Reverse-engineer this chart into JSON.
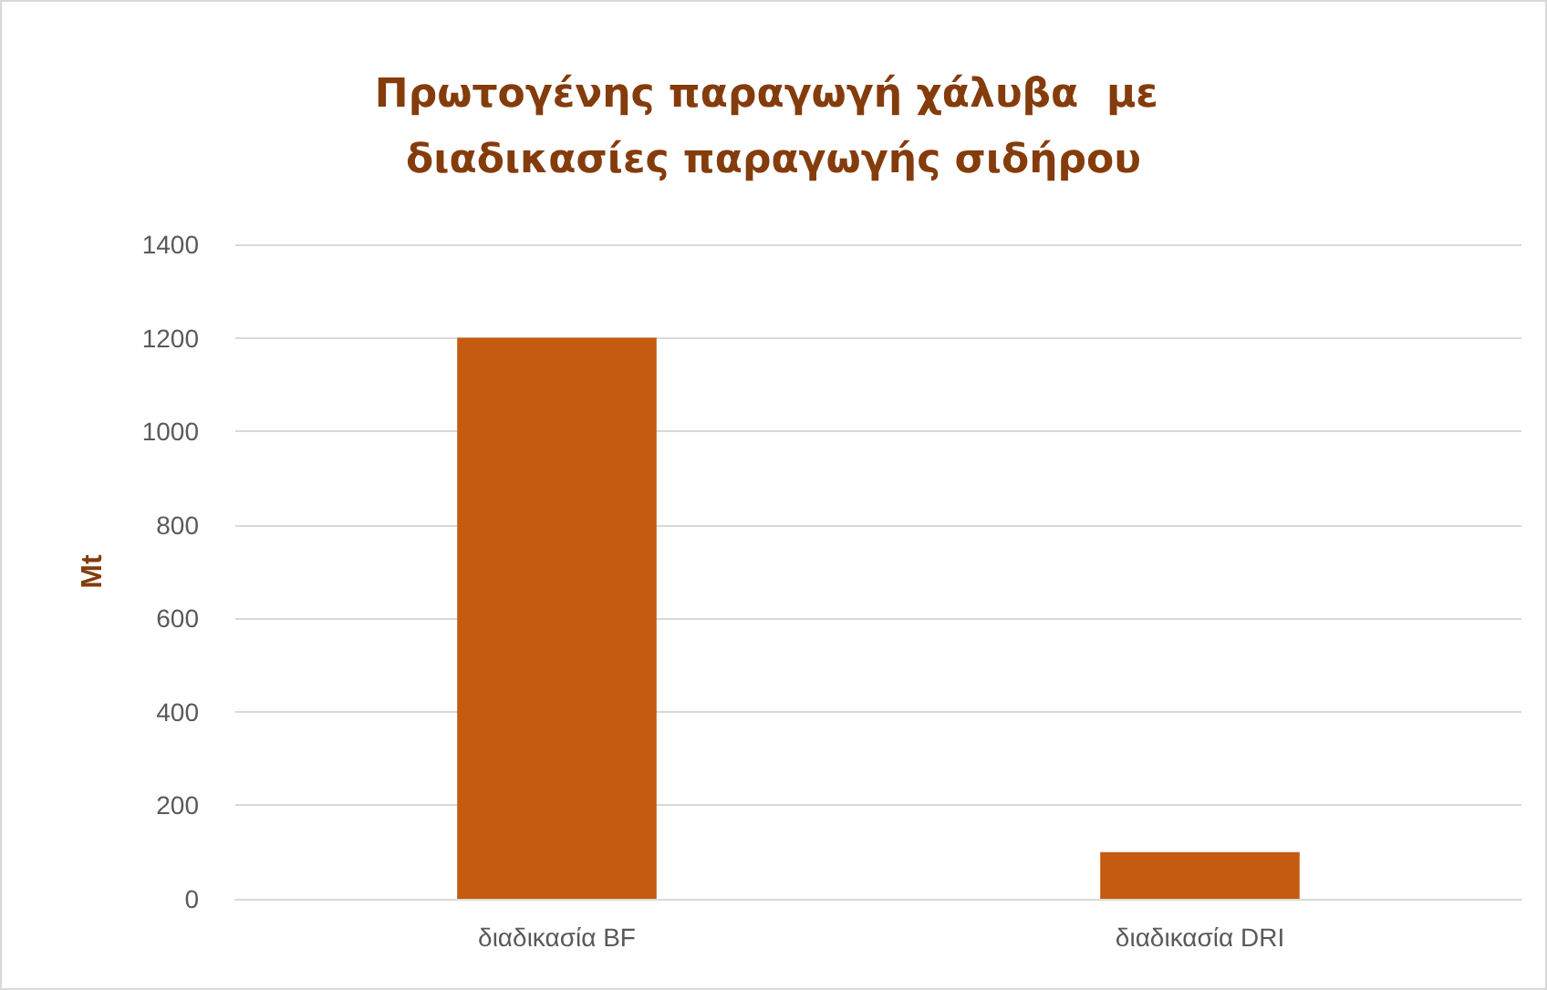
{
  "chart_data": {
    "type": "bar",
    "title": "Πρωτογένης παραγωγή χάλυβα  με διαδικασίες παραγωγής σιδήρου",
    "ylabel": "Mt",
    "categories": [
      "διαδικασία BF",
      "διαδικασία DRI"
    ],
    "values": [
      1200,
      100
    ],
    "color": "#c55a11",
    "ylim": [
      0,
      1400
    ],
    "yticks": [
      0,
      200,
      400,
      600,
      800,
      1000,
      1200,
      1400
    ],
    "grid": "y"
  }
}
